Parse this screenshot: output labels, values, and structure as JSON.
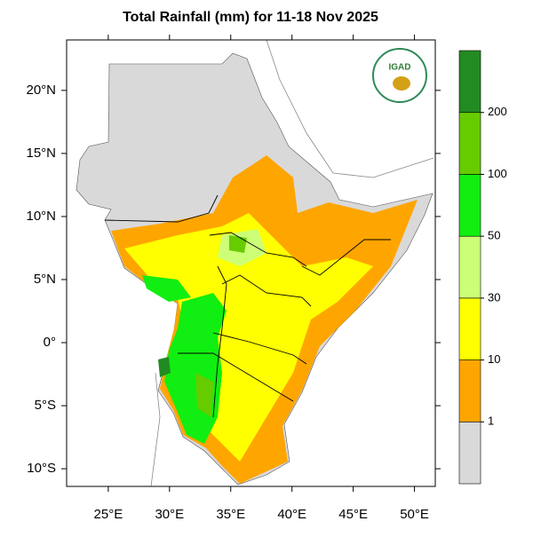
{
  "chart_data": {
    "type": "map",
    "title": "Total Rainfall (mm) for 11-18 Nov 2025",
    "logo_text": "IGAD",
    "xlim": [
      21.6,
      51.7
    ],
    "ylim": [
      -11.4,
      24.0
    ],
    "xticks": [
      {
        "value": 25,
        "label": "25°E"
      },
      {
        "value": 30,
        "label": "30°E"
      },
      {
        "value": 35,
        "label": "35°E"
      },
      {
        "value": 40,
        "label": "40°E"
      },
      {
        "value": 45,
        "label": "45°E"
      },
      {
        "value": 50,
        "label": "50°E"
      }
    ],
    "yticks": [
      {
        "value": 20,
        "label": "20°N"
      },
      {
        "value": 15,
        "label": "15°N"
      },
      {
        "value": 10,
        "label": "10°N"
      },
      {
        "value": 5,
        "label": "5°N"
      },
      {
        "value": 0,
        "label": "0°"
      },
      {
        "value": -5,
        "label": "5°S"
      },
      {
        "value": -10,
        "label": "10°S"
      }
    ],
    "colorbar": {
      "levels": [
        1,
        10,
        30,
        50,
        100,
        200
      ],
      "colors": [
        "#d9d9d9",
        "#ffa500",
        "#ffff00",
        "#ccff77",
        "#11ee11",
        "#66cc00",
        "#228b22"
      ]
    }
  }
}
